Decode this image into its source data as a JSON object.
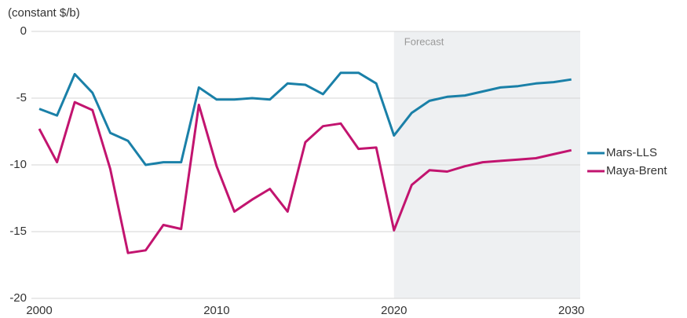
{
  "chart_data": {
    "type": "line",
    "y_axis_label": "(constant $/b)",
    "annotation": "Forecast",
    "forecast_start": 2020,
    "x": [
      2000,
      2001,
      2002,
      2003,
      2004,
      2005,
      2006,
      2007,
      2008,
      2009,
      2010,
      2011,
      2012,
      2013,
      2014,
      2015,
      2016,
      2017,
      2018,
      2019,
      2020,
      2021,
      2022,
      2023,
      2024,
      2025,
      2026,
      2027,
      2028,
      2029,
      2030
    ],
    "series": [
      {
        "name": "Mars-LLS",
        "color": "#1a80a8",
        "values": [
          -5.8,
          -6.3,
          -3.2,
          -4.6,
          -7.6,
          -8.2,
          -10.0,
          -9.8,
          -9.8,
          -4.2,
          -5.1,
          -5.1,
          -5.0,
          -5.1,
          -3.9,
          -4.0,
          -4.7,
          -3.1,
          -3.1,
          -3.9,
          -7.8,
          -6.1,
          -5.2,
          -4.9,
          -4.8,
          -4.5,
          -4.2,
          -4.1,
          -3.9,
          -3.8,
          -3.6
        ]
      },
      {
        "name": "Maya-Brent",
        "color": "#c2146f",
        "values": [
          -7.3,
          -9.8,
          -5.3,
          -5.9,
          -10.3,
          -16.6,
          -16.4,
          -14.5,
          -14.8,
          -5.5,
          -10.1,
          -13.5,
          -12.6,
          -11.8,
          -13.5,
          -8.3,
          -7.1,
          -6.9,
          -8.8,
          -8.7,
          -14.9,
          -11.5,
          -10.4,
          -10.5,
          -10.1,
          -9.8,
          -9.7,
          -9.6,
          -9.5,
          -9.2,
          -8.9
        ]
      }
    ],
    "xlim": [
      2000,
      2030.5
    ],
    "xticks": [
      2000,
      2010,
      2020,
      2030
    ],
    "ylim": [
      -20,
      0
    ],
    "yticks": [
      0,
      -5,
      -10,
      -15,
      -20
    ],
    "grid": true,
    "legend": "right"
  }
}
